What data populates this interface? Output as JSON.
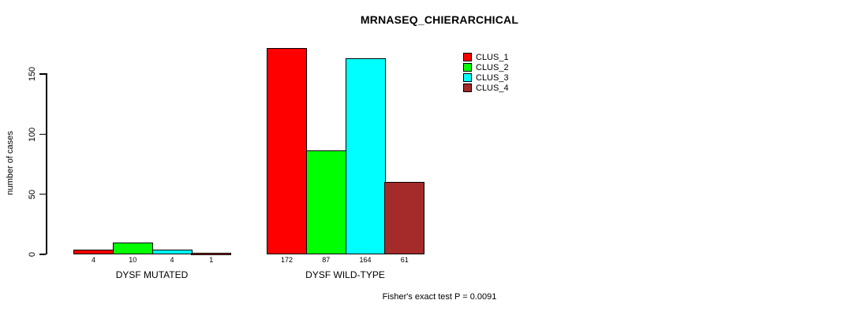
{
  "chart_data": {
    "type": "bar",
    "title": "MRNASEQ_CHIERARCHICAL",
    "ylabel": "number of cases",
    "xlabel": "",
    "yticks": [
      0,
      50,
      100,
      150
    ],
    "ylim": [
      0,
      175
    ],
    "grid": false,
    "legend_position": "top-right",
    "bar_value_labels": true,
    "categories": [
      "DYSF MUTATED",
      "DYSF WILD-TYPE"
    ],
    "series": [
      {
        "name": "CLUS_1",
        "color": "#ff0000",
        "values": [
          4,
          172
        ]
      },
      {
        "name": "CLUS_2",
        "color": "#00ff00",
        "values": [
          10,
          87
        ]
      },
      {
        "name": "CLUS_3",
        "color": "#00ffff",
        "values": [
          4,
          164
        ]
      },
      {
        "name": "CLUS_4",
        "color": "#a52a2a",
        "values": [
          1,
          61
        ]
      }
    ],
    "footnote": "Fisher's exact test P = 0.0091"
  }
}
